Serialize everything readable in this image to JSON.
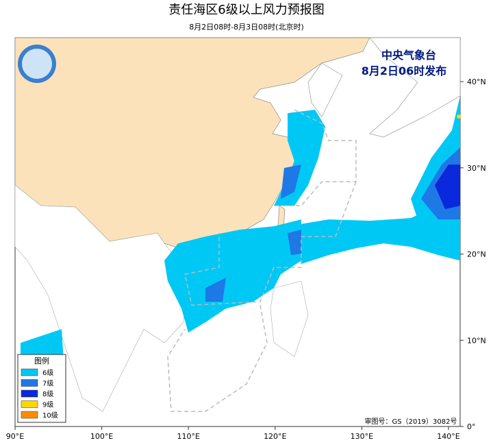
{
  "header": {
    "title": "责任海区6级以上风力预报图",
    "subtitle": "8月2日08时-8月3日08时(北京时)"
  },
  "issuer": {
    "agency": "中央气象台",
    "time": "8月2日06时发布"
  },
  "legend": {
    "title": "图例",
    "items": [
      "6级",
      "7级",
      "8级",
      "9级",
      "10级"
    ]
  },
  "axes": {
    "lon_ticks": [
      "90°E",
      "100°E",
      "110°E",
      "120°E",
      "130°E",
      "140°E"
    ],
    "lat_ticks": [
      "0°",
      "10°N",
      "20°N",
      "30°N",
      "40°N"
    ]
  },
  "footer": {
    "review_number": "审图号：GS（2019）3082号"
  }
}
